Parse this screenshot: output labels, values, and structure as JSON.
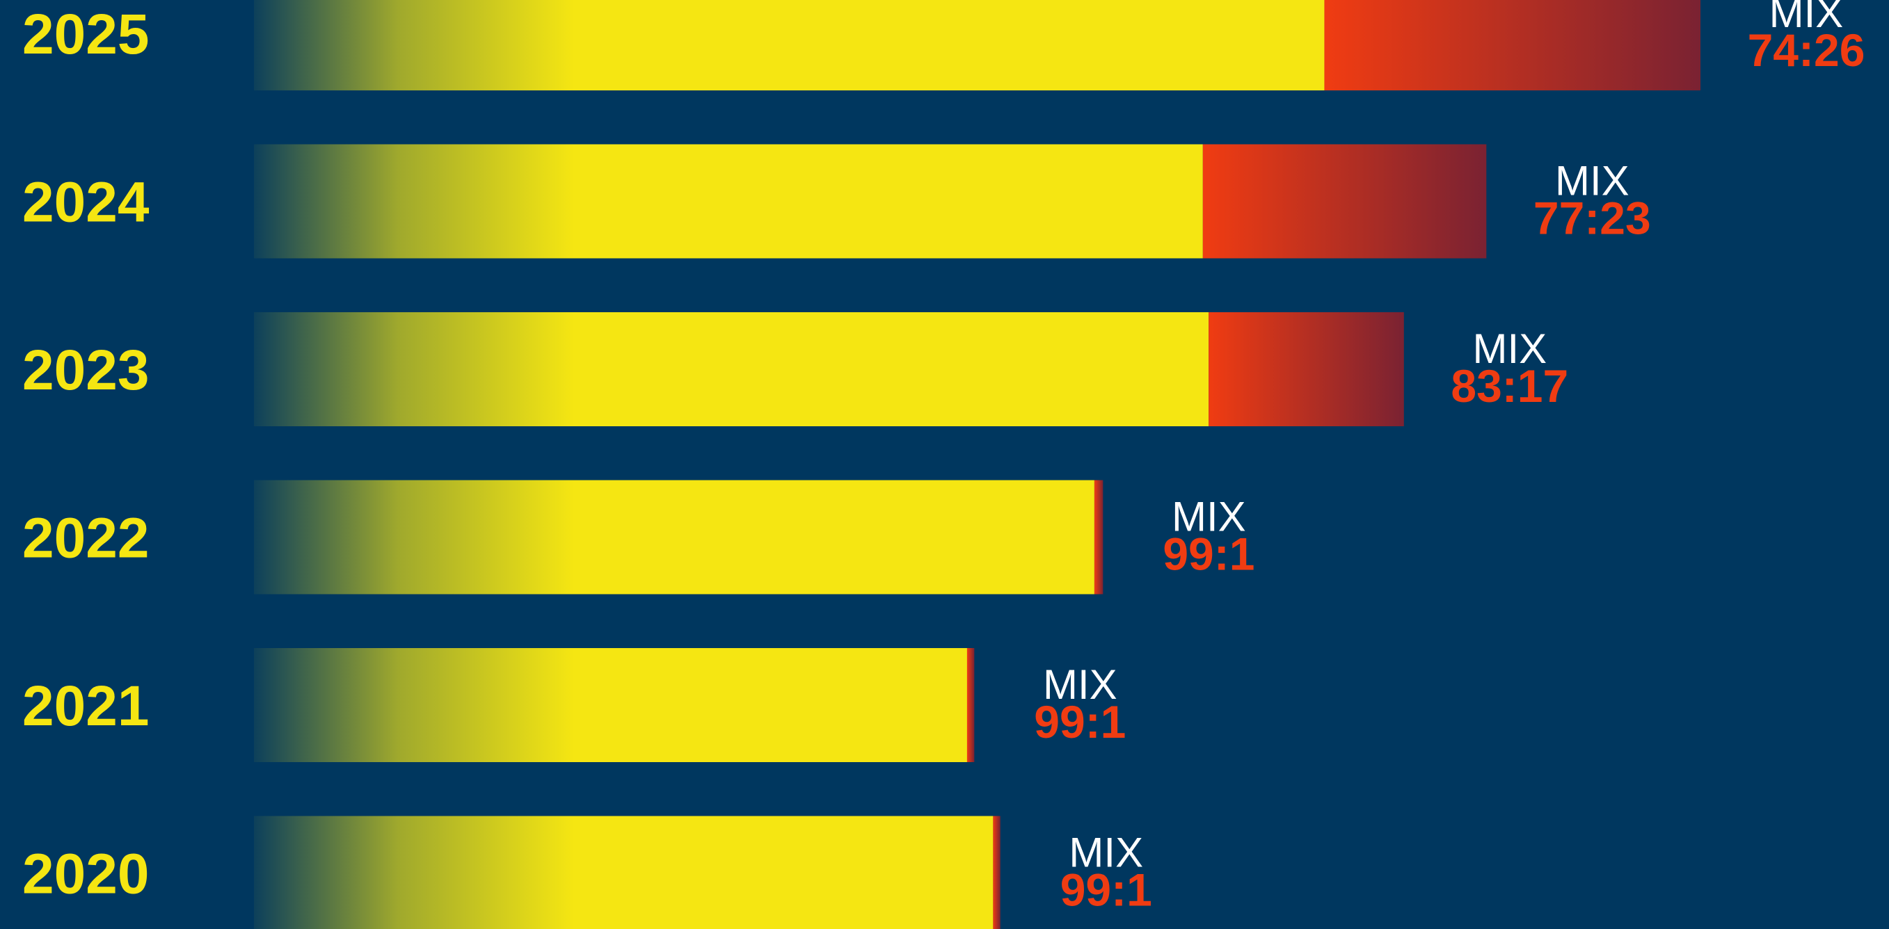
{
  "colors": {
    "background": "#00375f",
    "primary_segment": "#f5e612",
    "secondary_segment_start": "#f03c12",
    "secondary_segment_end": "#7a2232",
    "year_text": "#f5e612",
    "mix_text": "#ffffff",
    "ratio_text": "#f03c12"
  },
  "chart_data": {
    "type": "bar",
    "orientation": "horizontal",
    "stacked": true,
    "categories": [
      "2025",
      "2024",
      "2023",
      "2022",
      "2021",
      "2020"
    ],
    "totals": [
      100,
      85.2,
      79.5,
      58.7,
      49.8,
      51.6
    ],
    "mix_label": "MIX",
    "ratio_labels": [
      "74:26",
      "77:23",
      "83:17",
      "99:1",
      "99:1",
      "99:1"
    ],
    "series": [
      {
        "values": [
          74,
          65.6,
          66.0,
          58.1,
          49.3,
          51.1
        ]
      },
      {
        "values": [
          26,
          19.6,
          13.5,
          0.6,
          0.5,
          0.5
        ]
      }
    ],
    "grid": false,
    "legend": "none"
  }
}
